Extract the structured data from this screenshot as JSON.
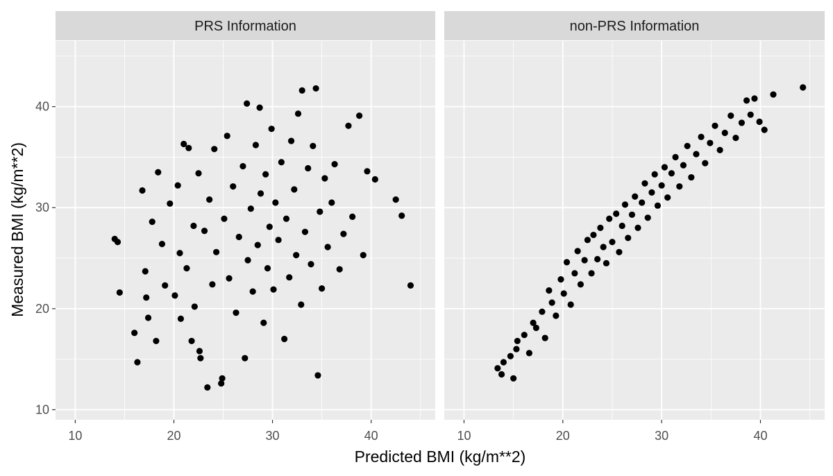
{
  "chart_data": {
    "type": "scatter",
    "xlabel": "Predicted BMI (kg/m**2)",
    "ylabel": "Measured BMI (kg/m**2)",
    "xlim": [
      8,
      46.5
    ],
    "ylim": [
      9,
      46.5
    ],
    "x_ticks": [
      10,
      20,
      30,
      40
    ],
    "y_ticks": [
      10,
      20,
      30,
      40
    ],
    "grid": true,
    "point_color": "#000000",
    "panel_background": "#EBEBEB",
    "strip_background": "#D9D9D9",
    "panels": [
      {
        "strip_label": "PRS Information",
        "points": [
          [
            14.0,
            26.9
          ],
          [
            14.3,
            26.6
          ],
          [
            14.5,
            21.6
          ],
          [
            16.0,
            17.6
          ],
          [
            16.3,
            14.7
          ],
          [
            16.8,
            31.7
          ],
          [
            17.1,
            23.7
          ],
          [
            17.2,
            21.1
          ],
          [
            17.4,
            19.1
          ],
          [
            17.8,
            28.6
          ],
          [
            18.2,
            16.8
          ],
          [
            18.4,
            33.5
          ],
          [
            18.8,
            26.4
          ],
          [
            19.1,
            22.3
          ],
          [
            19.6,
            30.4
          ],
          [
            20.1,
            21.3
          ],
          [
            20.4,
            32.2
          ],
          [
            20.6,
            25.5
          ],
          [
            20.7,
            19.0
          ],
          [
            21.0,
            36.3
          ],
          [
            21.3,
            24.0
          ],
          [
            21.5,
            35.9
          ],
          [
            21.8,
            16.8
          ],
          [
            22.0,
            28.2
          ],
          [
            22.1,
            20.2
          ],
          [
            22.5,
            33.4
          ],
          [
            22.6,
            15.8
          ],
          [
            22.7,
            15.1
          ],
          [
            23.1,
            27.7
          ],
          [
            23.4,
            12.2
          ],
          [
            23.6,
            30.8
          ],
          [
            23.9,
            22.4
          ],
          [
            24.1,
            35.8
          ],
          [
            24.3,
            25.6
          ],
          [
            24.8,
            12.6
          ],
          [
            24.9,
            13.1
          ],
          [
            25.1,
            28.9
          ],
          [
            25.4,
            37.1
          ],
          [
            25.6,
            23.0
          ],
          [
            26.0,
            32.1
          ],
          [
            26.3,
            19.6
          ],
          [
            26.6,
            27.1
          ],
          [
            27.0,
            34.1
          ],
          [
            27.2,
            15.1
          ],
          [
            27.4,
            40.3
          ],
          [
            27.5,
            24.8
          ],
          [
            27.8,
            29.9
          ],
          [
            28.0,
            21.7
          ],
          [
            28.3,
            36.2
          ],
          [
            28.5,
            26.3
          ],
          [
            28.7,
            39.9
          ],
          [
            28.8,
            31.4
          ],
          [
            29.1,
            18.6
          ],
          [
            29.3,
            33.3
          ],
          [
            29.5,
            24.0
          ],
          [
            29.7,
            28.1
          ],
          [
            29.9,
            37.8
          ],
          [
            30.1,
            21.9
          ],
          [
            30.3,
            30.5
          ],
          [
            30.6,
            26.8
          ],
          [
            30.9,
            34.5
          ],
          [
            31.2,
            17.0
          ],
          [
            31.4,
            28.9
          ],
          [
            31.7,
            23.1
          ],
          [
            31.9,
            36.6
          ],
          [
            32.2,
            31.8
          ],
          [
            32.4,
            25.3
          ],
          [
            32.6,
            39.3
          ],
          [
            32.9,
            20.4
          ],
          [
            33.0,
            41.6
          ],
          [
            33.3,
            27.6
          ],
          [
            33.6,
            33.9
          ],
          [
            33.9,
            24.4
          ],
          [
            34.1,
            36.1
          ],
          [
            34.4,
            41.8
          ],
          [
            34.6,
            13.4
          ],
          [
            34.8,
            29.6
          ],
          [
            35.0,
            22.0
          ],
          [
            35.3,
            32.9
          ],
          [
            35.6,
            26.1
          ],
          [
            36.0,
            30.5
          ],
          [
            36.3,
            34.3
          ],
          [
            36.8,
            23.9
          ],
          [
            37.2,
            27.4
          ],
          [
            37.7,
            38.1
          ],
          [
            38.1,
            29.1
          ],
          [
            38.8,
            39.1
          ],
          [
            39.2,
            25.3
          ],
          [
            39.6,
            33.6
          ],
          [
            40.4,
            32.8
          ],
          [
            42.5,
            30.8
          ],
          [
            43.1,
            29.2
          ],
          [
            44.0,
            22.3
          ]
        ]
      },
      {
        "strip_label": "non-PRS Information",
        "points": [
          [
            13.4,
            14.1
          ],
          [
            13.8,
            13.5
          ],
          [
            14.0,
            14.7
          ],
          [
            14.7,
            15.3
          ],
          [
            15.0,
            13.1
          ],
          [
            15.3,
            16.0
          ],
          [
            15.4,
            16.8
          ],
          [
            16.1,
            17.4
          ],
          [
            16.6,
            15.6
          ],
          [
            17.0,
            18.6
          ],
          [
            17.3,
            18.1
          ],
          [
            17.9,
            19.7
          ],
          [
            18.2,
            17.1
          ],
          [
            18.6,
            21.8
          ],
          [
            18.9,
            20.6
          ],
          [
            19.3,
            19.3
          ],
          [
            19.8,
            22.9
          ],
          [
            20.1,
            21.5
          ],
          [
            20.4,
            24.6
          ],
          [
            20.8,
            20.4
          ],
          [
            21.2,
            23.5
          ],
          [
            21.5,
            25.7
          ],
          [
            21.8,
            22.4
          ],
          [
            22.2,
            24.8
          ],
          [
            22.5,
            26.8
          ],
          [
            22.9,
            23.5
          ],
          [
            23.1,
            27.3
          ],
          [
            23.5,
            24.9
          ],
          [
            23.8,
            28.0
          ],
          [
            24.1,
            26.1
          ],
          [
            24.4,
            24.5
          ],
          [
            24.7,
            28.9
          ],
          [
            25.0,
            26.6
          ],
          [
            25.4,
            29.4
          ],
          [
            25.7,
            25.6
          ],
          [
            26.0,
            28.2
          ],
          [
            26.3,
            30.3
          ],
          [
            26.6,
            27.0
          ],
          [
            27.0,
            29.3
          ],
          [
            27.3,
            31.1
          ],
          [
            27.6,
            28.0
          ],
          [
            28.0,
            30.5
          ],
          [
            28.3,
            32.4
          ],
          [
            28.6,
            29.0
          ],
          [
            29.0,
            31.5
          ],
          [
            29.3,
            33.3
          ],
          [
            29.6,
            30.2
          ],
          [
            30.0,
            32.2
          ],
          [
            30.3,
            34.0
          ],
          [
            30.6,
            31.0
          ],
          [
            31.0,
            33.4
          ],
          [
            31.4,
            35.0
          ],
          [
            31.8,
            32.1
          ],
          [
            32.2,
            34.2
          ],
          [
            32.6,
            36.1
          ],
          [
            33.0,
            33.0
          ],
          [
            33.5,
            35.3
          ],
          [
            34.0,
            37.0
          ],
          [
            34.4,
            34.4
          ],
          [
            34.9,
            36.4
          ],
          [
            35.4,
            38.1
          ],
          [
            35.9,
            35.7
          ],
          [
            36.4,
            37.4
          ],
          [
            37.0,
            39.1
          ],
          [
            37.5,
            36.9
          ],
          [
            38.1,
            38.4
          ],
          [
            38.6,
            40.6
          ],
          [
            39.0,
            39.2
          ],
          [
            39.4,
            40.8
          ],
          [
            39.9,
            38.5
          ],
          [
            40.4,
            37.7
          ],
          [
            41.3,
            41.2
          ],
          [
            44.3,
            41.9
          ]
        ]
      }
    ]
  }
}
